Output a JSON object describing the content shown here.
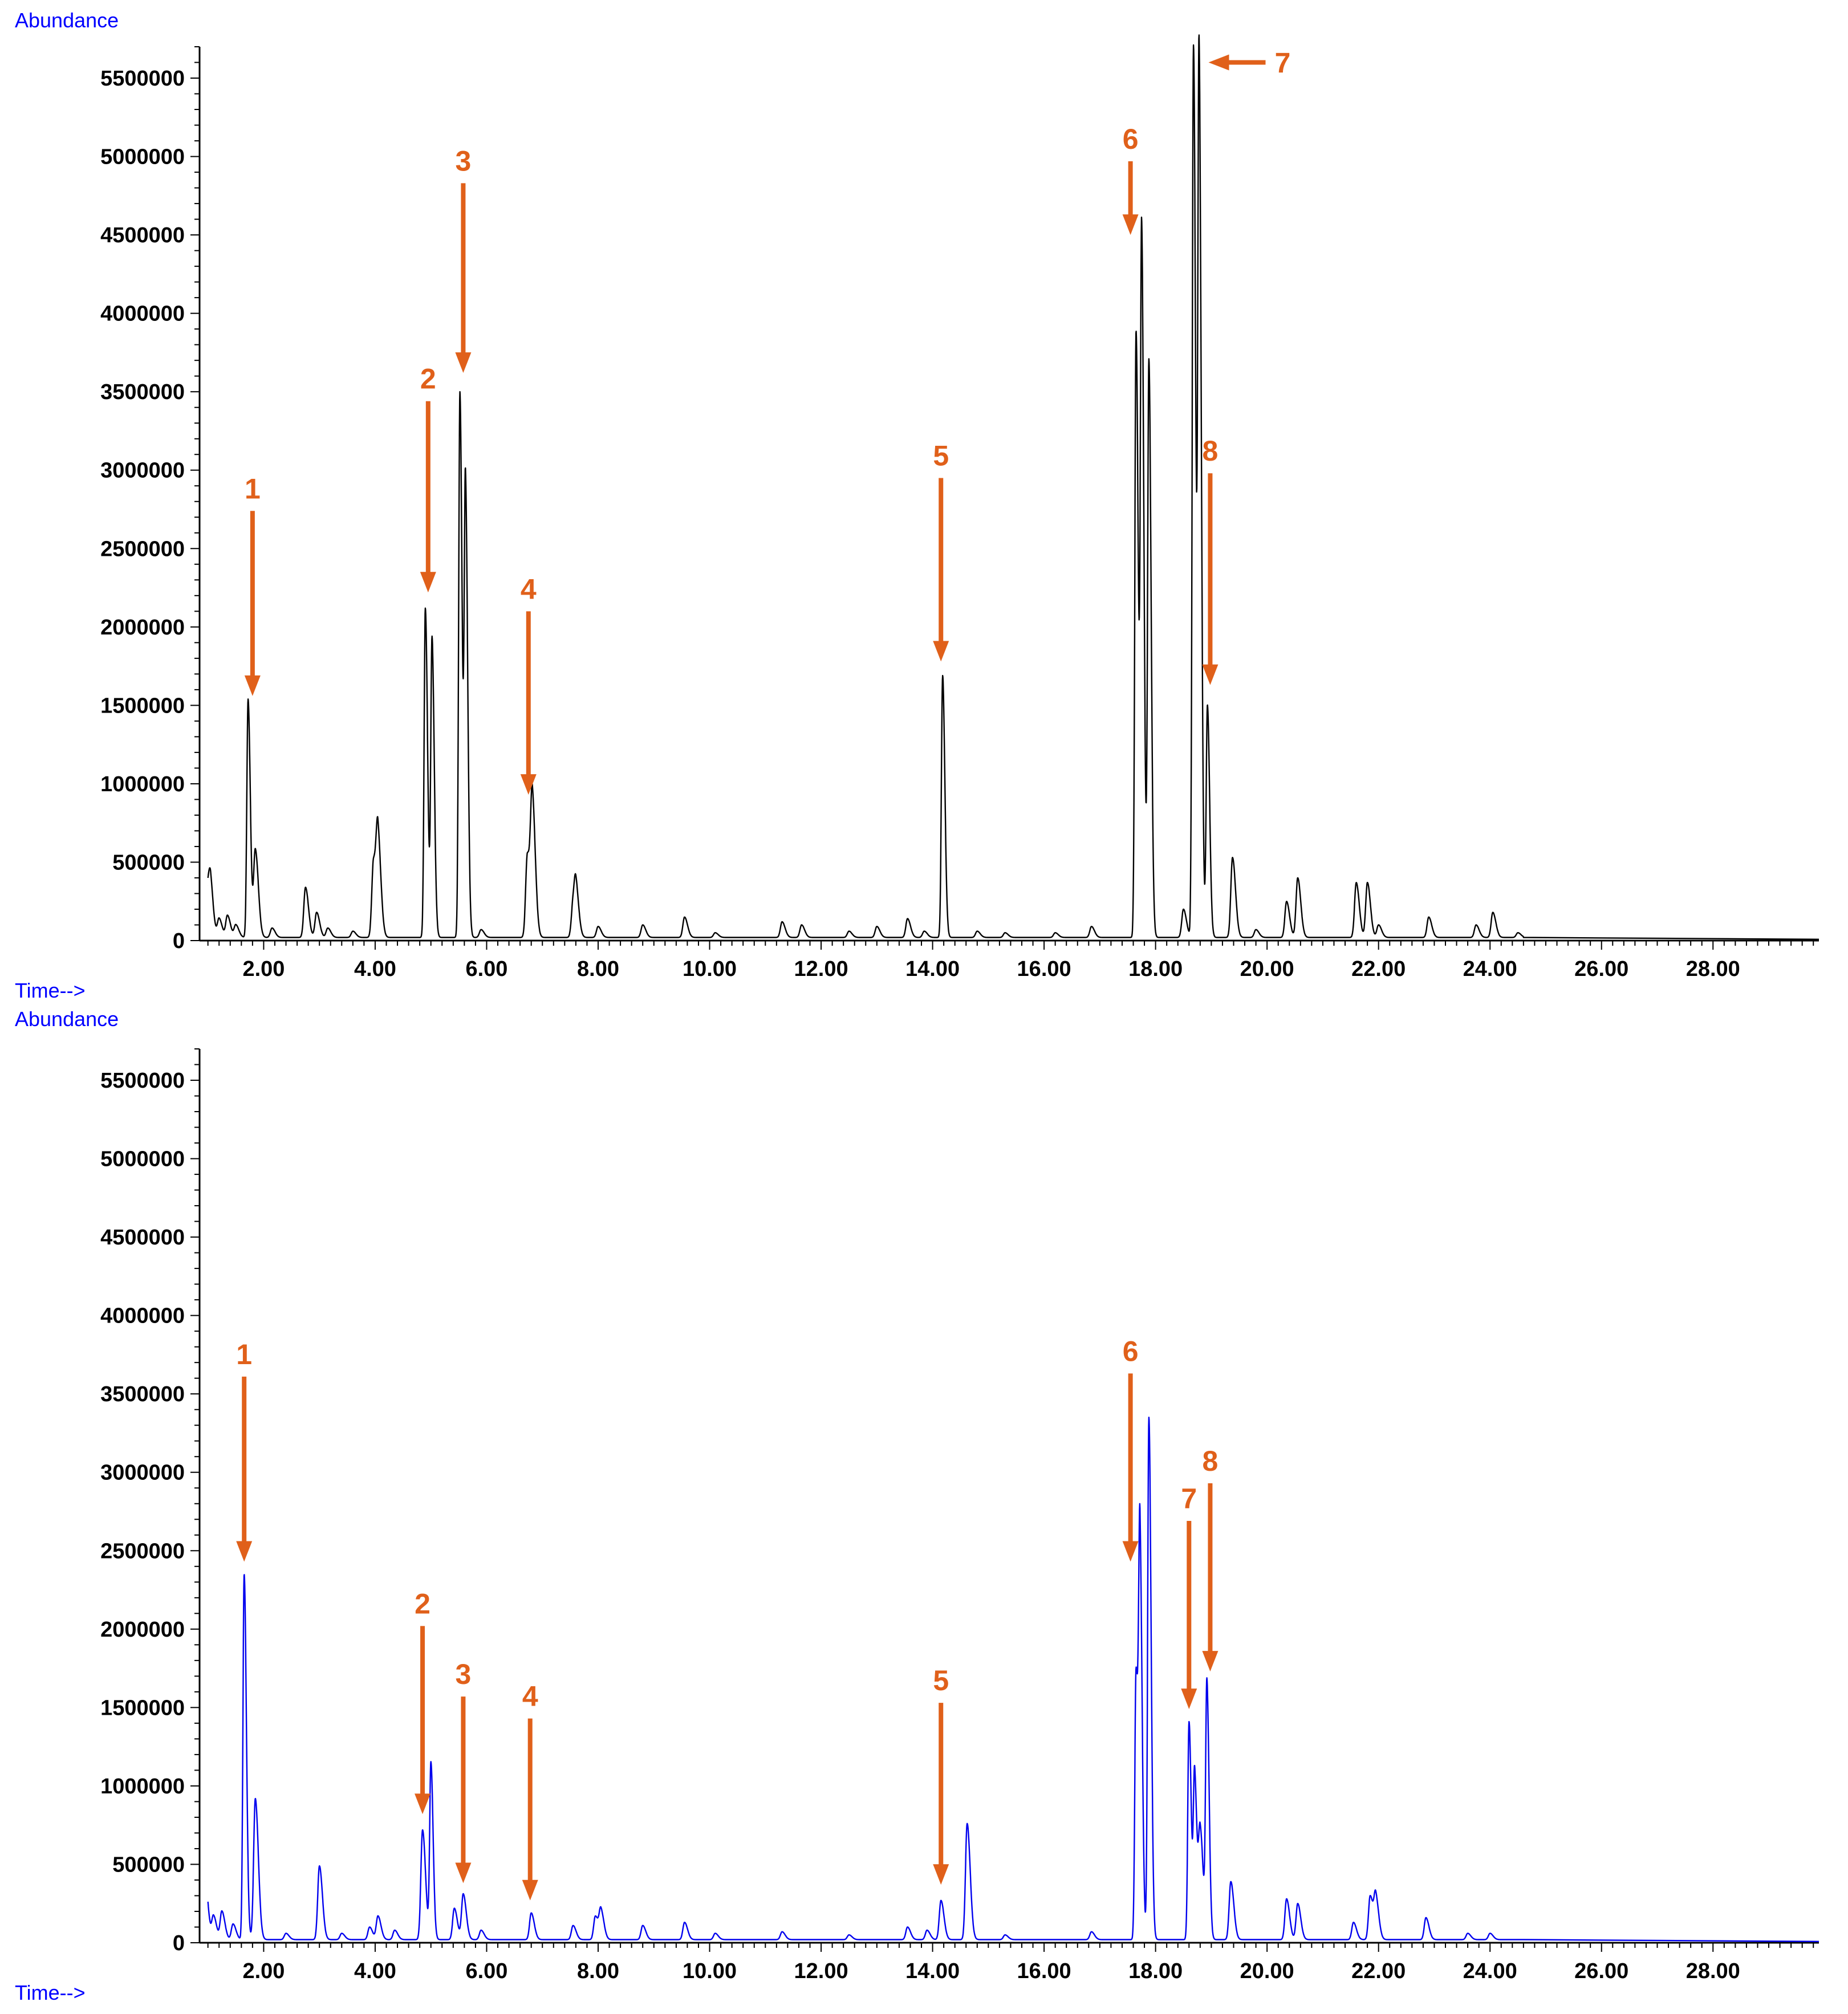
{
  "chart_data": [
    {
      "type": "line",
      "ylabel": "Abundance",
      "xlabel": "Time-->",
      "xlim": [
        0.85,
        29.9
      ],
      "ylim": [
        0,
        5700000
      ],
      "x_ticks": [
        "2.00",
        "4.00",
        "6.00",
        "8.00",
        "10.00",
        "12.00",
        "14.00",
        "16.00",
        "18.00",
        "20.00",
        "22.00",
        "24.00",
        "26.00",
        "28.00"
      ],
      "y_ticks": [
        "500000",
        "1000000",
        "1500000",
        "2000000",
        "2500000",
        "3000000",
        "3500000",
        "4000000",
        "4500000",
        "5000000",
        "5500000"
      ],
      "line_color": "#000000",
      "baseline": 20000,
      "peaks": [
        [
          1.0,
          330000
        ],
        [
          1.05,
          200000
        ],
        [
          1.2,
          120000
        ],
        [
          1.35,
          140000
        ],
        [
          1.5,
          80000
        ],
        [
          1.72,
          1520000
        ],
        [
          1.85,
          560000
        ],
        [
          2.15,
          60000
        ],
        [
          2.75,
          320000
        ],
        [
          2.95,
          160000
        ],
        [
          3.15,
          60000
        ],
        [
          3.6,
          40000
        ],
        [
          3.97,
          490000
        ],
        [
          4.05,
          590000
        ],
        [
          4.9,
          2100000
        ],
        [
          5.02,
          1900000
        ],
        [
          5.52,
          3480000
        ],
        [
          5.62,
          2850000
        ],
        [
          5.9,
          50000
        ],
        [
          6.73,
          530000
        ],
        [
          6.82,
          840000
        ],
        [
          7.55,
          210000
        ],
        [
          7.6,
          260000
        ],
        [
          8.0,
          70000
        ],
        [
          8.8,
          80000
        ],
        [
          9.55,
          130000
        ],
        [
          10.1,
          30000
        ],
        [
          11.3,
          100000
        ],
        [
          11.65,
          80000
        ],
        [
          12.5,
          40000
        ],
        [
          13.0,
          70000
        ],
        [
          13.55,
          120000
        ],
        [
          13.85,
          40000
        ],
        [
          14.18,
          1670000
        ],
        [
          14.8,
          40000
        ],
        [
          15.3,
          30000
        ],
        [
          16.2,
          30000
        ],
        [
          16.85,
          70000
        ],
        [
          17.65,
          3870000
        ],
        [
          17.75,
          4430000
        ],
        [
          17.88,
          3670000
        ],
        [
          18.5,
          180000
        ],
        [
          18.68,
          5690000
        ],
        [
          18.78,
          5520000
        ],
        [
          18.93,
          1480000
        ],
        [
          19.38,
          510000
        ],
        [
          19.8,
          50000
        ],
        [
          20.35,
          230000
        ],
        [
          20.55,
          380000
        ],
        [
          21.6,
          350000
        ],
        [
          21.8,
          350000
        ],
        [
          22.0,
          80000
        ],
        [
          22.9,
          130000
        ],
        [
          23.75,
          80000
        ],
        [
          24.05,
          160000
        ],
        [
          24.5,
          30000
        ]
      ],
      "annotations": [
        {
          "label": "1",
          "dir": "down",
          "x": 1.8,
          "y": 1560000,
          "len": 1180000
        },
        {
          "label": "2",
          "dir": "down",
          "x": 4.95,
          "y": 2220000,
          "len": 1220000
        },
        {
          "label": "3",
          "dir": "down",
          "x": 5.58,
          "y": 3620000,
          "len": 1210000
        },
        {
          "label": "4",
          "dir": "down",
          "x": 6.75,
          "y": 930000,
          "len": 1170000
        },
        {
          "label": "5",
          "dir": "down",
          "x": 14.15,
          "y": 1780000,
          "len": 1170000
        },
        {
          "label": "6",
          "dir": "down",
          "x": 17.55,
          "y": 4500000,
          "len": 470000
        },
        {
          "label": "7",
          "dir": "left",
          "x": 18.95,
          "y": 5600000,
          "len": 1.0
        },
        {
          "label": "8",
          "dir": "down",
          "x": 18.98,
          "y": 1630000,
          "len": 1350000
        }
      ]
    },
    {
      "type": "line",
      "ylabel": "Abundance",
      "xlabel": "Time-->",
      "xlim": [
        0.85,
        29.9
      ],
      "ylim": [
        0,
        5700000
      ],
      "x_ticks": [
        "2.00",
        "4.00",
        "6.00",
        "8.00",
        "10.00",
        "12.00",
        "14.00",
        "16.00",
        "18.00",
        "20.00",
        "22.00",
        "24.00",
        "26.00",
        "28.00"
      ],
      "y_ticks": [
        "500000",
        "1000000",
        "1500000",
        "2000000",
        "2500000",
        "3000000",
        "3500000",
        "4000000",
        "4500000",
        "5000000",
        "5500000"
      ],
      "line_color": "#0000ee",
      "baseline": 20000,
      "peaks": [
        [
          0.95,
          370000
        ],
        [
          1.1,
          150000
        ],
        [
          1.25,
          180000
        ],
        [
          1.45,
          100000
        ],
        [
          1.65,
          2330000
        ],
        [
          1.85,
          900000
        ],
        [
          2.4,
          40000
        ],
        [
          3.0,
          470000
        ],
        [
          3.4,
          40000
        ],
        [
          3.9,
          80000
        ],
        [
          4.05,
          150000
        ],
        [
          4.35,
          60000
        ],
        [
          4.85,
          700000
        ],
        [
          5.0,
          1120000
        ],
        [
          5.42,
          200000
        ],
        [
          5.58,
          290000
        ],
        [
          5.9,
          60000
        ],
        [
          6.8,
          170000
        ],
        [
          7.55,
          90000
        ],
        [
          7.95,
          150000
        ],
        [
          8.05,
          180000
        ],
        [
          8.8,
          90000
        ],
        [
          9.55,
          110000
        ],
        [
          10.1,
          40000
        ],
        [
          11.3,
          50000
        ],
        [
          12.5,
          30000
        ],
        [
          13.55,
          80000
        ],
        [
          13.9,
          60000
        ],
        [
          14.15,
          250000
        ],
        [
          14.62,
          740000
        ],
        [
          15.3,
          30000
        ],
        [
          16.85,
          50000
        ],
        [
          17.65,
          1720000
        ],
        [
          17.72,
          2390000
        ],
        [
          17.88,
          3330000
        ],
        [
          18.6,
          1390000
        ],
        [
          18.7,
          1050000
        ],
        [
          18.8,
          700000
        ],
        [
          18.92,
          1610000
        ],
        [
          19.35,
          370000
        ],
        [
          20.35,
          260000
        ],
        [
          20.55,
          230000
        ],
        [
          21.55,
          110000
        ],
        [
          21.85,
          280000
        ],
        [
          21.95,
          260000
        ],
        [
          22.85,
          140000
        ],
        [
          23.6,
          40000
        ],
        [
          24.0,
          40000
        ]
      ],
      "annotations": [
        {
          "label": "1",
          "dir": "down",
          "x": 1.65,
          "y": 2430000,
          "len": 1180000
        },
        {
          "label": "2",
          "dir": "down",
          "x": 4.85,
          "y": 820000,
          "len": 1200000
        },
        {
          "label": "3",
          "dir": "down",
          "x": 5.58,
          "y": 380000,
          "len": 1190000
        },
        {
          "label": "4",
          "dir": "down",
          "x": 6.78,
          "y": 270000,
          "len": 1160000
        },
        {
          "label": "5",
          "dir": "down",
          "x": 14.15,
          "y": 370000,
          "len": 1160000
        },
        {
          "label": "6",
          "dir": "down",
          "x": 17.55,
          "y": 2430000,
          "len": 1200000
        },
        {
          "label": "7",
          "dir": "down",
          "x": 18.6,
          "y": 1490000,
          "len": 1200000
        },
        {
          "label": "8",
          "dir": "down",
          "x": 18.98,
          "y": 1730000,
          "len": 1200000
        }
      ]
    }
  ],
  "colors": {
    "annotation": "#e0601a",
    "axis_title": "#0000ff"
  }
}
